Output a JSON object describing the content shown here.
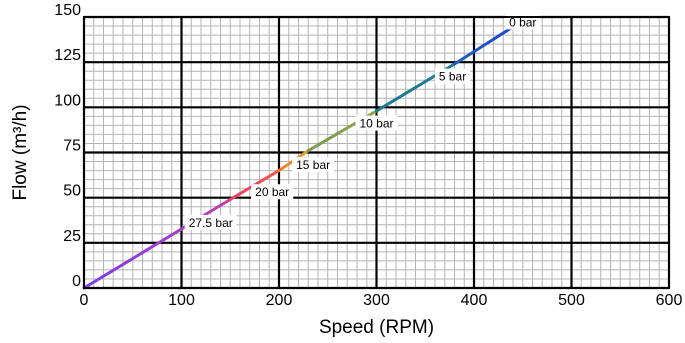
{
  "chart_data": {
    "type": "line",
    "xlabel": "Speed (RPM)",
    "ylabel": "Flow (m³/h)",
    "xlim": [
      0,
      600
    ],
    "ylim": [
      0,
      150
    ],
    "x_ticks": [
      0,
      100,
      200,
      300,
      400,
      500,
      600
    ],
    "y_ticks": [
      0,
      25,
      50,
      75,
      100,
      125,
      150
    ],
    "x_tick_labels": [
      "0",
      "100",
      "200",
      "300",
      "400",
      "500",
      "600"
    ],
    "y_tick_labels": [
      "0",
      "25",
      "50",
      "75",
      "100",
      "125",
      "150"
    ],
    "grid": "major and minor",
    "series": [
      {
        "x": [
          0,
          150
        ],
        "y": [
          0,
          49
        ],
        "colors": [
          "#7a3ce6",
          "#c040b0"
        ]
      },
      {
        "x": [
          150,
          200
        ],
        "y": [
          49,
          65
        ],
        "colors": [
          "#e8406a",
          "#f05a4a"
        ]
      },
      {
        "x": [
          200,
          230
        ],
        "y": [
          65,
          76
        ],
        "colors": [
          "#f07a28",
          "#e8a030"
        ]
      },
      {
        "x": [
          230,
          300
        ],
        "y": [
          76,
          98
        ],
        "colors": [
          "#7a9a50",
          "#8aa845"
        ]
      },
      {
        "x": [
          300,
          380
        ],
        "y": [
          98,
          124
        ],
        "colors": [
          "#1a7a8a",
          "#1f7a98"
        ]
      },
      {
        "x": [
          380,
          450
        ],
        "y": [
          124,
          148
        ],
        "colors": [
          "#1f60b8",
          "#1a40d0"
        ]
      }
    ],
    "annotations": [
      {
        "text": "27.5 bar",
        "x": 130,
        "y": 36
      },
      {
        "text": "20 bar",
        "x": 193,
        "y": 53
      },
      {
        "text": "15 bar",
        "x": 235,
        "y": 68
      },
      {
        "text": "10 bar",
        "x": 300,
        "y": 91
      },
      {
        "text": "5 bar",
        "x": 378,
        "y": 117
      },
      {
        "text": "0 bar",
        "x": 450,
        "y": 147
      }
    ]
  }
}
